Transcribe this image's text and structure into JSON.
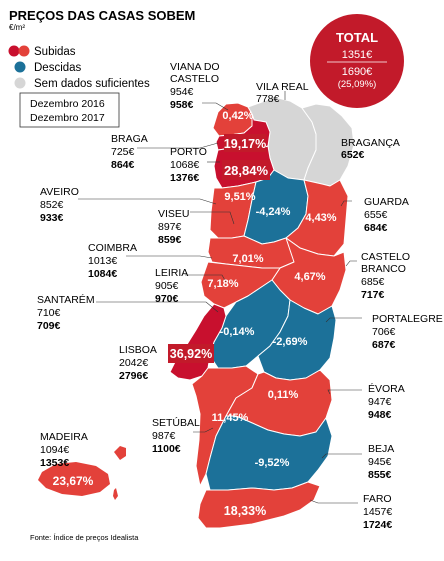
{
  "header": {
    "title": "PREÇOS DAS CASAS SOBEM",
    "unit": "€/m²"
  },
  "legend": {
    "subidas": "Subidas",
    "descidas": "Descidas",
    "sem_dados": "Sem dados suficientes",
    "year1": "Dezembro 2016",
    "year2": "Dezembro 2017"
  },
  "colors": {
    "subidas": "#e3413a",
    "subidas_dark": "#c8102e",
    "descidas": "#1c7199",
    "sem_dados": "#d6d6d6",
    "pct_highlight": "#c21a2a"
  },
  "total": {
    "label": "TOTAL",
    "v2016": "1351€",
    "v2017": "1690€",
    "change": "(25,09%)"
  },
  "regions": {
    "viana": {
      "name1": "VIANA DO",
      "name2": "CASTELO",
      "v2016": "954€",
      "v2017": "958€",
      "pct": "0,42%"
    },
    "vilareal": {
      "name": "VILA REAL",
      "v2016": "778€"
    },
    "braganca": {
      "name": "BRAGANÇA",
      "v2016": "652€"
    },
    "braga": {
      "name": "BRAGA",
      "v2016": "725€",
      "v2017": "864€",
      "pct": "19,17%"
    },
    "porto": {
      "name": "PORTO",
      "v2016": "1068€",
      "v2017": "1376€",
      "pct": "28,84%"
    },
    "aveiro": {
      "name": "AVEIRO",
      "v2016": "852€",
      "v2017": "933€",
      "pct": "9,51%"
    },
    "viseu": {
      "name": "VISEU",
      "v2016": "897€",
      "v2017": "859€",
      "pct": "-4,24%"
    },
    "guarda": {
      "name": "GUARDA",
      "v2016": "655€",
      "v2017": "684€",
      "pct": "4,43%"
    },
    "coimbra": {
      "name": "COIMBRA",
      "v2016": "1013€",
      "v2017": "1084€",
      "pct": "7,01%"
    },
    "leiria": {
      "name": "LEIRIA",
      "v2016": "905€",
      "v2017": "970€",
      "pct": "7,18%"
    },
    "castelobranco": {
      "name1": "CASTELO",
      "name2": "BRANCO",
      "v2016": "685€",
      "v2017": "717€",
      "pct": "4,67%"
    },
    "santarem": {
      "name": "SANTARÉM",
      "v2016": "710€",
      "v2017": "709€",
      "pct": "-0,14%"
    },
    "portalegre": {
      "name": "PORTALEGRE",
      "v2016": "706€",
      "v2017": "687€",
      "pct": "-2,69%"
    },
    "lisboa": {
      "name": "LISBOA",
      "v2016": "2042€",
      "v2017": "2796€",
      "pct": "36,92%"
    },
    "evora": {
      "name": "ÉVORA",
      "v2016": "947€",
      "v2017": "948€",
      "pct": "0,11%"
    },
    "setubal": {
      "name": "SETÚBAL",
      "v2016": "987€",
      "v2017": "1100€",
      "pct": "11,45%"
    },
    "beja": {
      "name": "BEJA",
      "v2016": "945€",
      "v2017": "855€",
      "pct": "-9,52%"
    },
    "faro": {
      "name": "FARO",
      "v2016": "1457€",
      "v2017": "1724€",
      "pct": "18,33%"
    },
    "madeira": {
      "name": "MADEIRA",
      "v2016": "1094€",
      "v2017": "1353€",
      "pct": "23,67%"
    }
  },
  "source": "Fonte: Índice de preços Idealista"
}
